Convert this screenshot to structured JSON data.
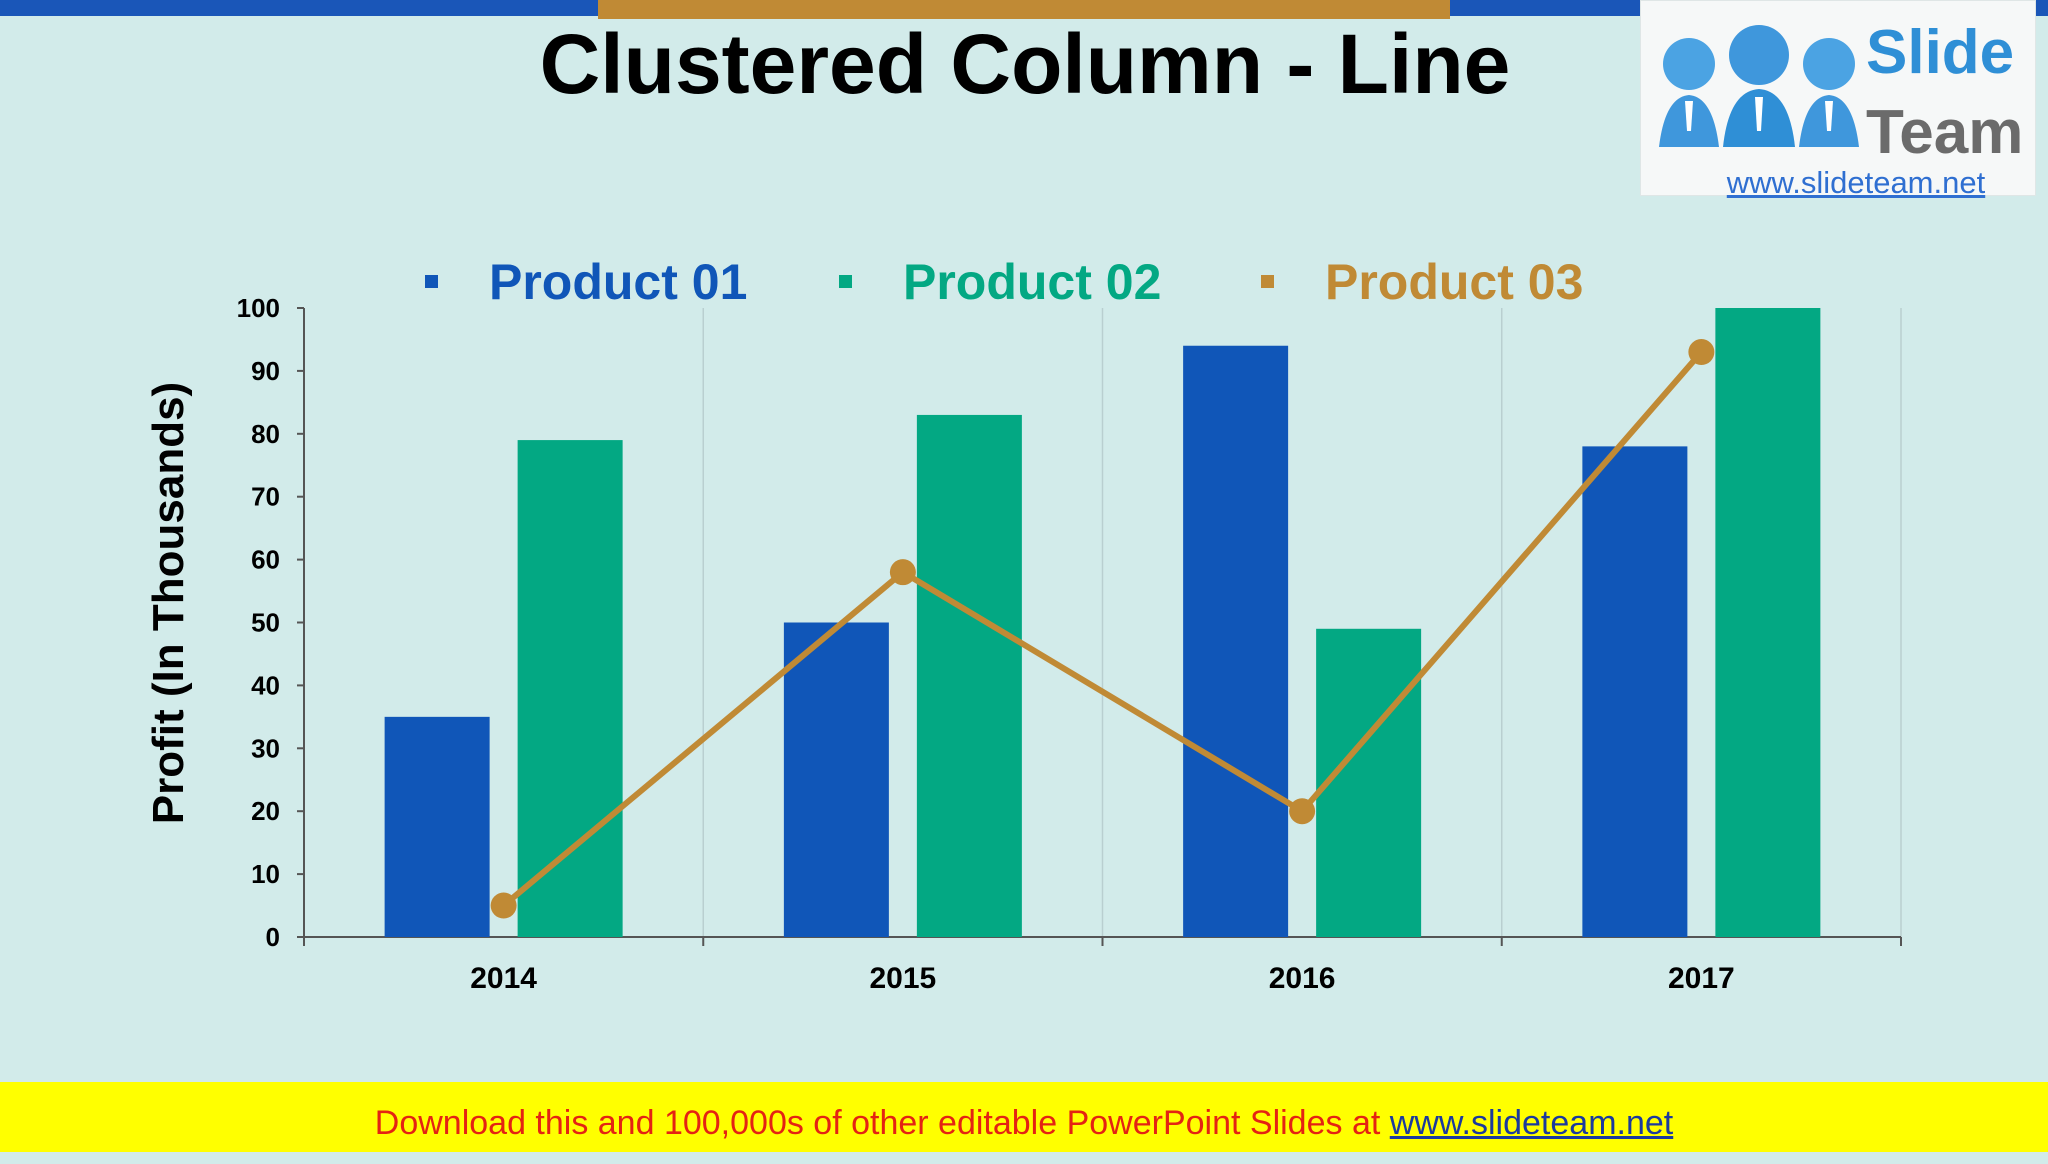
{
  "slide": {
    "title": "Clustered Column - Line"
  },
  "logo": {
    "word1": "Slide",
    "word2": "Team",
    "url": "www.slideteam.net"
  },
  "footer": {
    "text": "Download this and 100,000s of other editable PowerPoint Slides at ",
    "url": "www.slideteam.net"
  },
  "chart_data": {
    "type": "bar",
    "categories": [
      "2014",
      "2015",
      "2016",
      "2017"
    ],
    "series": [
      {
        "name": "Product 01",
        "type": "bar",
        "color": "#1056b8",
        "values": [
          35,
          50,
          94,
          78
        ]
      },
      {
        "name": "Product 02",
        "type": "bar",
        "color": "#03a883",
        "values": [
          79,
          83,
          49,
          100
        ]
      },
      {
        "name": "Product 03",
        "type": "line",
        "color": "#c08a35",
        "values": [
          5,
          58,
          20,
          93
        ]
      }
    ],
    "ylabel": "Profit  (In Thousands)",
    "xlabel": "",
    "ylim": [
      0,
      100
    ],
    "yticks": [
      0,
      10,
      20,
      30,
      40,
      50,
      60,
      70,
      80,
      90,
      100
    ],
    "grid": "vertical category separators",
    "legend": "top-center"
  }
}
